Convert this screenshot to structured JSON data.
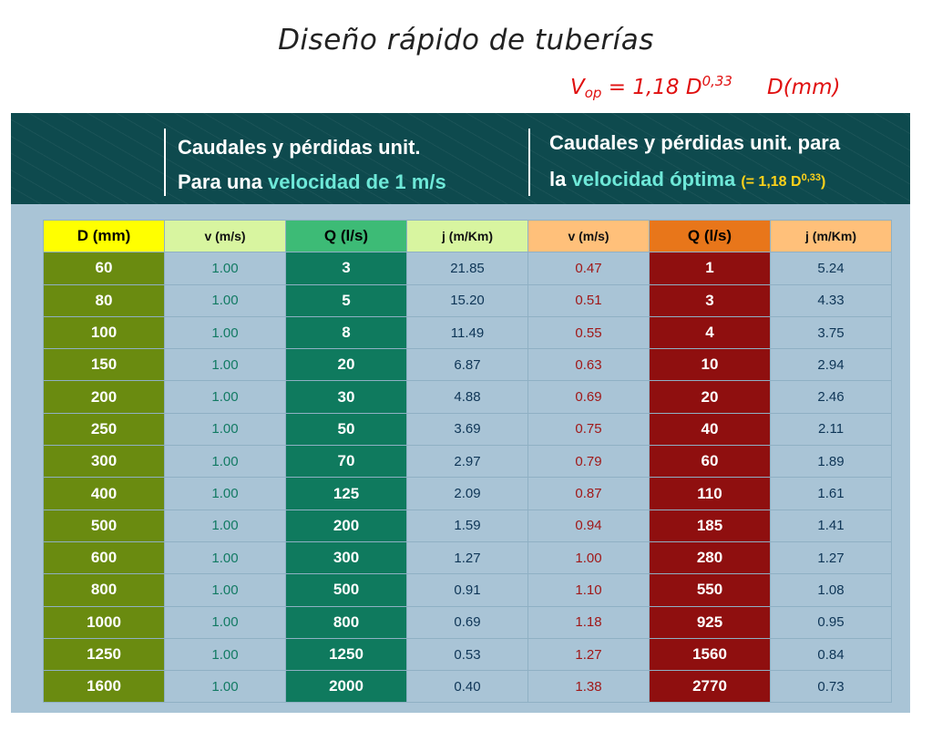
{
  "title": "Diseño rápido de tuberías",
  "formula": {
    "v": "V",
    "v_sub": "op",
    "expr": " = 1,18 D",
    "exp": "0,33",
    "unit": "D(mm)"
  },
  "header": {
    "left_line1": "Caudales y pérdidas unit.",
    "left_line2_pre": "Para una ",
    "left_line2_hl": "velocidad de 1 m/s",
    "right_line1": "Caudales y pérdidas unit. para",
    "right_line2_pre": "la ",
    "right_line2_hl": "velocidad óptima",
    "right_line2_eq": "(= 1,18 D",
    "right_line2_exp": "0,33",
    "right_line2_close": ")"
  },
  "table": {
    "columns": [
      "D (mm)",
      "v (m/s)",
      "Q (l/s)",
      "j (m/Km)",
      "v (m/s)",
      "Q (l/s)",
      "j (m/Km)"
    ],
    "rows": [
      [
        "60",
        "1.00",
        "3",
        "21.85",
        "0.47",
        "1",
        "5.24"
      ],
      [
        "80",
        "1.00",
        "5",
        "15.20",
        "0.51",
        "3",
        "4.33"
      ],
      [
        "100",
        "1.00",
        "8",
        "11.49",
        "0.55",
        "4",
        "3.75"
      ],
      [
        "150",
        "1.00",
        "20",
        "6.87",
        "0.63",
        "10",
        "2.94"
      ],
      [
        "200",
        "1.00",
        "30",
        "4.88",
        "0.69",
        "20",
        "2.46"
      ],
      [
        "250",
        "1.00",
        "50",
        "3.69",
        "0.75",
        "40",
        "2.11"
      ],
      [
        "300",
        "1.00",
        "70",
        "2.97",
        "0.79",
        "60",
        "1.89"
      ],
      [
        "400",
        "1.00",
        "125",
        "2.09",
        "0.87",
        "110",
        "1.61"
      ],
      [
        "500",
        "1.00",
        "200",
        "1.59",
        "0.94",
        "185",
        "1.41"
      ],
      [
        "600",
        "1.00",
        "300",
        "1.27",
        "1.00",
        "280",
        "1.27"
      ],
      [
        "800",
        "1.00",
        "500",
        "0.91",
        "1.10",
        "550",
        "1.08"
      ],
      [
        "1000",
        "1.00",
        "800",
        "0.69",
        "1.18",
        "925",
        "0.95"
      ],
      [
        "1250",
        "1.00",
        "1250",
        "0.53",
        "1.27",
        "1560",
        "0.84"
      ],
      [
        "1600",
        "1.00",
        "2000",
        "0.40",
        "1.38",
        "2770",
        "0.73"
      ]
    ]
  }
}
